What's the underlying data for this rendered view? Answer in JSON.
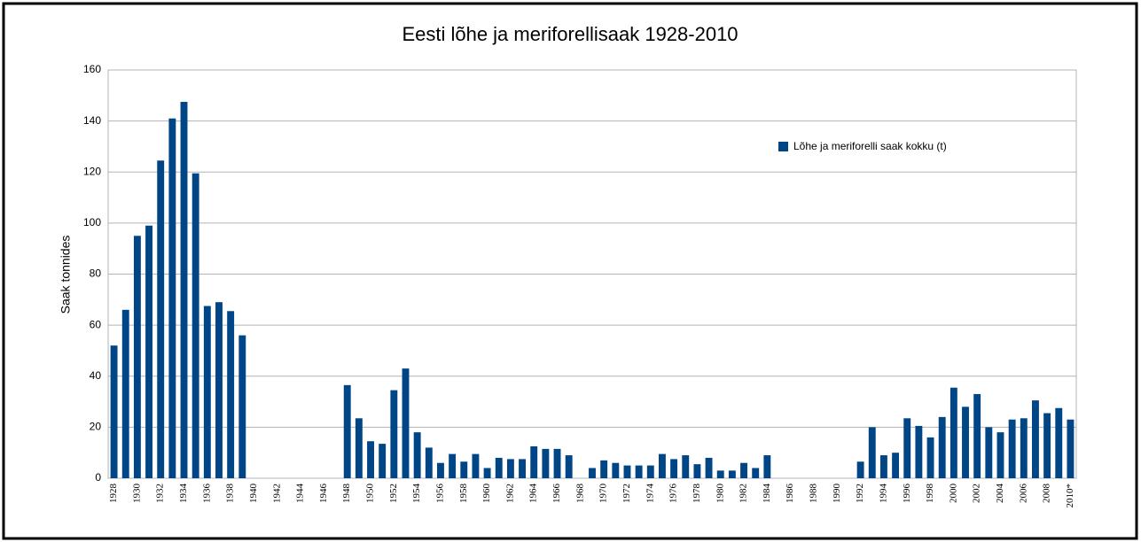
{
  "chart_data": {
    "type": "bar",
    "title": "Eesti lõhe ja meriforellisaak 1928-2010",
    "y_label": "Saak tonnides",
    "categories": [
      "1928",
      null,
      "1930",
      null,
      "1932",
      null,
      "1934",
      null,
      "1936",
      null,
      "1938",
      null,
      "1940",
      null,
      "1942",
      null,
      "1944",
      null,
      "1946",
      null,
      "1948",
      null,
      "1950",
      null,
      "1952",
      null,
      "1954",
      null,
      "1956",
      null,
      "1958",
      null,
      "1960",
      null,
      "1962",
      null,
      "1964",
      null,
      "1966",
      null,
      "1968",
      null,
      "1970",
      null,
      "1972",
      null,
      "1974",
      null,
      "1976",
      null,
      "1978",
      null,
      "1980",
      null,
      "1982",
      null,
      "1984",
      null,
      "1986",
      null,
      "1988",
      null,
      "1990",
      null,
      "1992",
      null,
      "1994",
      null,
      "1996",
      null,
      "1998",
      null,
      "2000",
      null,
      "2002",
      null,
      "2004",
      null,
      "2006",
      null,
      "2008",
      null,
      "2010*"
    ],
    "series": [
      {
        "name": "Lõhe ja meriforelli saak kokku (t)",
        "color": "#004586",
        "values": [
          52,
          66,
          95,
          99,
          124.5,
          141,
          147.5,
          119.5,
          67.5,
          69,
          65.5,
          56,
          null,
          null,
          null,
          null,
          null,
          null,
          null,
          null,
          36.5,
          23.5,
          14.5,
          13.5,
          34.5,
          43,
          18,
          12,
          6,
          9.5,
          6.5,
          9.5,
          4,
          8,
          7.5,
          7.5,
          12.5,
          11.5,
          11.5,
          9,
          null,
          4,
          7,
          6,
          5,
          5,
          5,
          9.5,
          7.5,
          9,
          5.5,
          8,
          3,
          3,
          6,
          4,
          9,
          null,
          null,
          null,
          null,
          null,
          null,
          null,
          6.5,
          20,
          9,
          10,
          23.5,
          20.5,
          16,
          24,
          35.5,
          28,
          33,
          20,
          18,
          23,
          23.5,
          30.5,
          25.5,
          27.5,
          23
        ]
      }
    ],
    "ylim": [
      0,
      160
    ],
    "yticks": [
      0,
      20,
      40,
      60,
      80,
      100,
      120,
      140,
      160
    ],
    "grid": true,
    "legend": "upper right"
  }
}
